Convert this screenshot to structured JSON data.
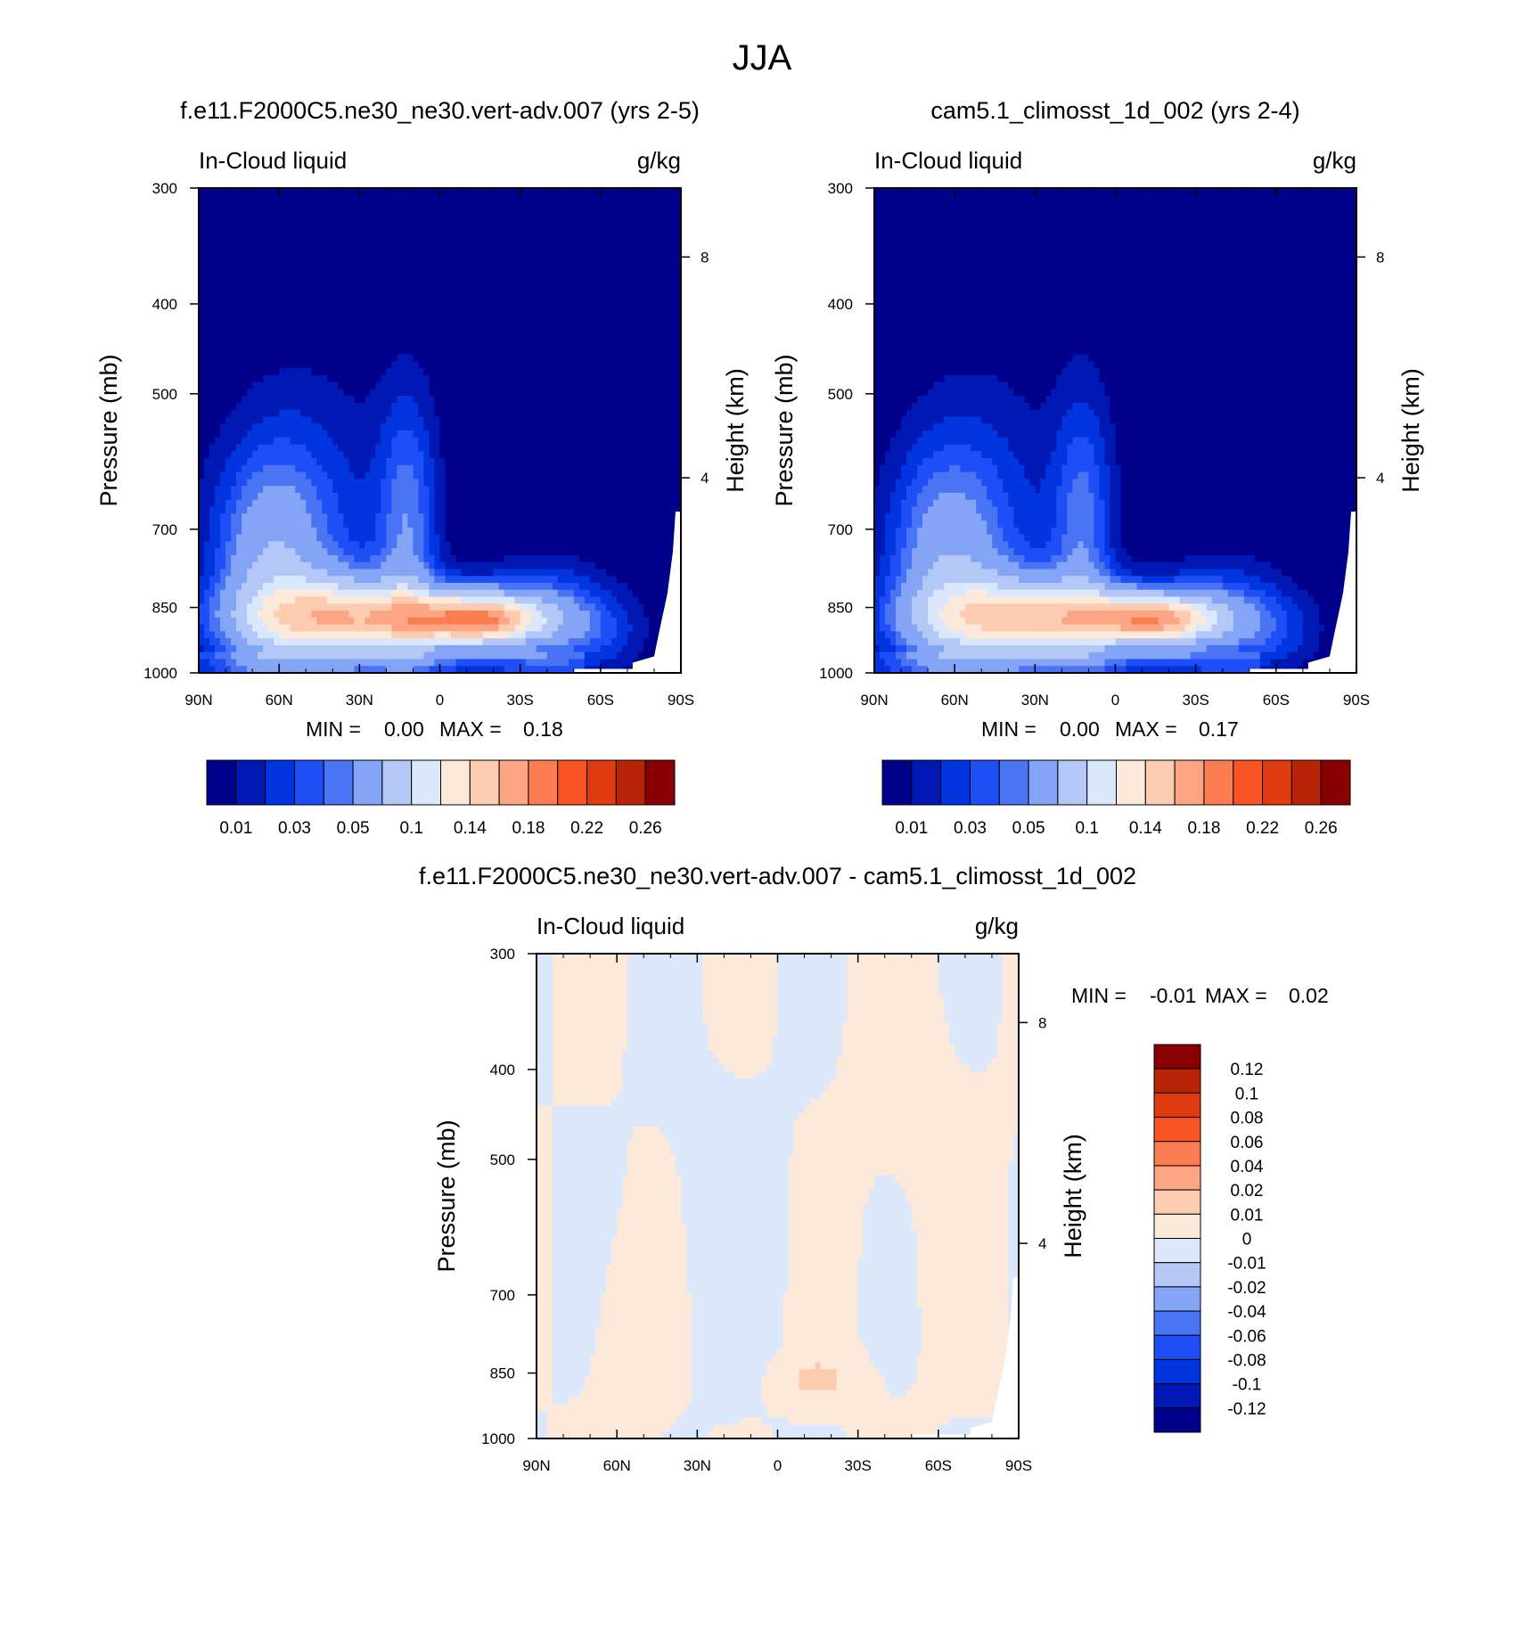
{
  "figure_title": "JJA",
  "chart_data": [
    {
      "type": "heatmap",
      "title": "f.e11.F2000C5.ne30_ne30.vert-adv.007 (yrs 2-5)",
      "variable_label": "In-Cloud liquid",
      "units_label": "g/kg",
      "ylabel": "Pressure (mb)",
      "ylabel_right": "Height (km)",
      "x_ticks": [
        "90N",
        "60N",
        "30N",
        "0",
        "30S",
        "60S",
        "90S"
      ],
      "x_range": [
        90,
        -90
      ],
      "y_ticks": [
        "300",
        "400",
        "500",
        "700",
        "850",
        "1000"
      ],
      "y_range": [
        1000,
        300
      ],
      "right_ticks": [
        "8",
        "4"
      ],
      "stats": {
        "min_label": "MIN =",
        "min_value": "0.00",
        "max_label": "MAX =",
        "max_value": "0.18"
      },
      "colorbar_labels": [
        "0.01",
        "0.03",
        "0.05",
        "0.1",
        "0.14",
        "0.18",
        "0.22",
        "0.26"
      ],
      "max_value": 0.18
    },
    {
      "type": "heatmap",
      "title": "cam5.1_climosst_1d_002 (yrs 2-4)",
      "variable_label": "In-Cloud liquid",
      "units_label": "g/kg",
      "ylabel": "Pressure (mb)",
      "ylabel_right": "Height (km)",
      "x_ticks": [
        "90N",
        "60N",
        "30N",
        "0",
        "30S",
        "60S",
        "90S"
      ],
      "x_range": [
        90,
        -90
      ],
      "y_ticks": [
        "300",
        "400",
        "500",
        "700",
        "850",
        "1000"
      ],
      "y_range": [
        1000,
        300
      ],
      "right_ticks": [
        "8",
        "4"
      ],
      "stats": {
        "min_label": "MIN =",
        "min_value": "0.00",
        "max_label": "MAX =",
        "max_value": "0.17"
      },
      "colorbar_labels": [
        "0.01",
        "0.03",
        "0.05",
        "0.1",
        "0.14",
        "0.18",
        "0.22",
        "0.26"
      ],
      "max_value": 0.17
    },
    {
      "type": "heatmap",
      "title": "f.e11.F2000C5.ne30_ne30.vert-adv.007 - cam5.1_climosst_1d_002",
      "variable_label": "In-Cloud liquid",
      "units_label": "g/kg",
      "ylabel": "Pressure (mb)",
      "ylabel_right": "Height (km)",
      "x_ticks": [
        "90N",
        "60N",
        "30N",
        "0",
        "30S",
        "60S",
        "90S"
      ],
      "x_range": [
        90,
        -90
      ],
      "y_ticks": [
        "300",
        "400",
        "500",
        "700",
        "850",
        "1000"
      ],
      "y_range": [
        1000,
        300
      ],
      "right_ticks": [
        "8",
        "4"
      ],
      "stats": {
        "min_label": "MIN =",
        "min_value": "-0.01",
        "max_label": "MAX =",
        "max_value": "0.02"
      },
      "colorbar_labels": [
        "0.12",
        "0.1",
        "0.08",
        "0.06",
        "0.04",
        "0.02",
        "0.01",
        "0",
        "-0.01",
        "-0.02",
        "-0.04",
        "-0.06",
        "-0.08",
        "-0.1",
        "-0.12"
      ]
    }
  ],
  "palettes": {
    "absolute": [
      "#00008b",
      "#0019b4",
      "#0035e0",
      "#1e4ef5",
      "#4b74f5",
      "#84a4f5",
      "#b4c8f8",
      "#dbe8fb",
      "#fde9da",
      "#fdcbb0",
      "#fca584",
      "#fb7c50",
      "#fb5424",
      "#e03a10",
      "#b82408",
      "#890000"
    ],
    "difference": [
      "#890000",
      "#b82408",
      "#e03a10",
      "#fb5424",
      "#fb7c50",
      "#fca584",
      "#fdcbb0",
      "#fde9da",
      "#dbe8fb",
      "#b4c8f8",
      "#84a4f5",
      "#4b74f5",
      "#1e4ef5",
      "#0035e0",
      "#0019b4",
      "#00008b"
    ]
  }
}
